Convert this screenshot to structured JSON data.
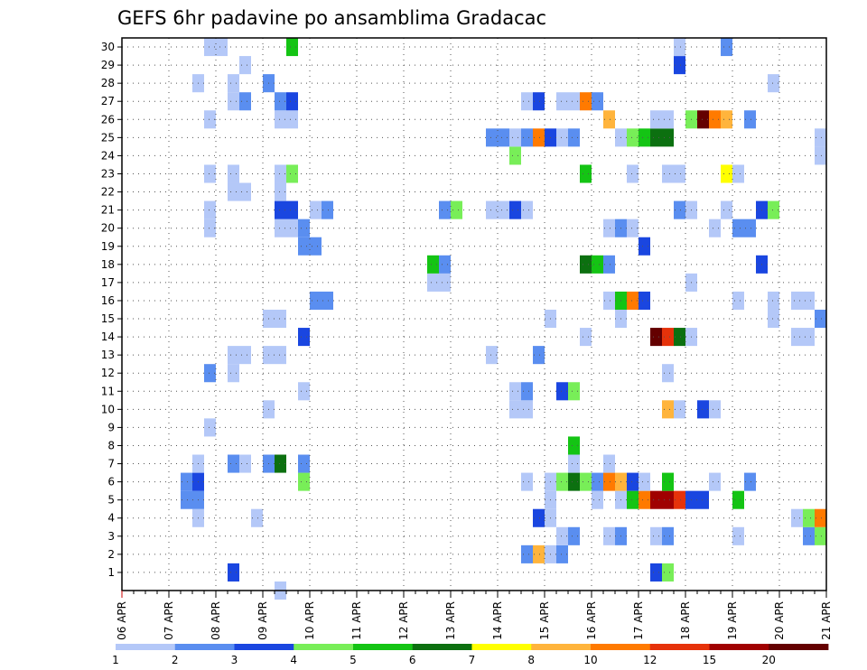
{
  "chart_data": {
    "type": "heatmap",
    "title": "GEFS 6hr padavine po ansamblima Gradacac",
    "xlabel": "",
    "ylabel": "",
    "x_labels": [
      "06 APR",
      "07 APR",
      "08 APR",
      "09 APR",
      "10 APR",
      "11 APR",
      "12 APR",
      "13 APR",
      "14 APR",
      "15 APR",
      "16 APR",
      "17 APR",
      "18 APR",
      "19 APR",
      "20 APR",
      "21 APR"
    ],
    "x_range": [
      0,
      60
    ],
    "x_step_hours": 6,
    "y_range": [
      0,
      30
    ],
    "y_ticks": [
      1,
      2,
      3,
      4,
      5,
      6,
      7,
      8,
      9,
      10,
      11,
      12,
      13,
      14,
      15,
      16,
      17,
      18,
      19,
      20,
      21,
      22,
      23,
      24,
      25,
      26,
      27,
      28,
      29,
      30
    ],
    "grid": true,
    "legend_position": "bottom",
    "colorbar": {
      "tick_labels": [
        "1",
        "2",
        "3",
        "4",
        "5",
        "6",
        "7",
        "8",
        "10",
        "12",
        "15",
        "20"
      ],
      "colors": [
        "#b4c8f8",
        "#5a8ef0",
        "#1a46e0",
        "#78ee58",
        "#14c414",
        "#0c7010",
        "#ffff00",
        "#ffb43c",
        "#ff7a00",
        "#e6320a",
        "#a00000",
        "#640000"
      ]
    },
    "cells": [
      [
        9,
        1,
        3
      ],
      [
        45,
        1,
        3
      ],
      [
        46,
        1,
        4
      ],
      [
        34,
        2,
        2
      ],
      [
        35,
        2,
        8
      ],
      [
        36,
        2,
        1
      ],
      [
        37,
        2,
        2
      ],
      [
        37,
        3,
        1
      ],
      [
        38,
        3,
        2
      ],
      [
        41,
        3,
        1
      ],
      [
        42,
        3,
        2
      ],
      [
        45,
        3,
        1
      ],
      [
        46,
        3,
        2
      ],
      [
        52,
        3,
        1
      ],
      [
        58,
        3,
        2
      ],
      [
        59,
        3,
        4
      ],
      [
        6,
        4,
        1
      ],
      [
        11,
        4,
        1
      ],
      [
        35,
        4,
        3
      ],
      [
        36,
        4,
        1
      ],
      [
        57,
        4,
        1
      ],
      [
        58,
        4,
        4
      ],
      [
        59,
        4,
        9
      ],
      [
        5,
        5,
        2
      ],
      [
        6,
        5,
        2
      ],
      [
        36,
        5,
        1
      ],
      [
        40,
        5,
        1
      ],
      [
        42,
        5,
        1
      ],
      [
        43,
        5,
        5
      ],
      [
        44,
        5,
        9
      ],
      [
        45,
        5,
        11
      ],
      [
        46,
        5,
        11
      ],
      [
        47,
        5,
        10
      ],
      [
        48,
        5,
        3
      ],
      [
        49,
        5,
        3
      ],
      [
        52,
        5,
        5
      ],
      [
        5,
        6,
        2
      ],
      [
        6,
        6,
        3
      ],
      [
        15,
        6,
        4
      ],
      [
        34,
        6,
        1
      ],
      [
        36,
        6,
        1
      ],
      [
        37,
        6,
        4
      ],
      [
        38,
        6,
        6
      ],
      [
        39,
        6,
        4
      ],
      [
        40,
        6,
        2
      ],
      [
        41,
        6,
        9
      ],
      [
        42,
        6,
        8
      ],
      [
        43,
        6,
        3
      ],
      [
        44,
        6,
        1
      ],
      [
        46,
        6,
        5
      ],
      [
        50,
        6,
        1
      ],
      [
        53,
        6,
        2
      ],
      [
        6,
        7,
        1
      ],
      [
        9,
        7,
        2
      ],
      [
        10,
        7,
        1
      ],
      [
        12,
        7,
        2
      ],
      [
        13,
        7,
        6
      ],
      [
        15,
        7,
        2
      ],
      [
        38,
        7,
        1
      ],
      [
        41,
        7,
        1
      ],
      [
        38,
        8,
        5
      ],
      [
        7,
        9,
        1
      ],
      [
        12,
        10,
        1
      ],
      [
        33,
        10,
        1
      ],
      [
        34,
        10,
        1
      ],
      [
        46,
        10,
        8
      ],
      [
        47,
        10,
        1
      ],
      [
        49,
        10,
        3
      ],
      [
        50,
        10,
        1
      ],
      [
        15,
        11,
        1
      ],
      [
        33,
        11,
        1
      ],
      [
        34,
        11,
        2
      ],
      [
        37,
        11,
        3
      ],
      [
        38,
        11,
        4
      ],
      [
        7,
        12,
        2
      ],
      [
        9,
        12,
        1
      ],
      [
        46,
        12,
        1
      ],
      [
        9,
        13,
        1
      ],
      [
        10,
        13,
        1
      ],
      [
        12,
        13,
        1
      ],
      [
        13,
        13,
        1
      ],
      [
        31,
        13,
        1
      ],
      [
        35,
        13,
        2
      ],
      [
        15,
        14,
        3
      ],
      [
        39,
        14,
        1
      ],
      [
        45,
        14,
        12
      ],
      [
        46,
        14,
        10
      ],
      [
        47,
        14,
        6
      ],
      [
        48,
        14,
        1
      ],
      [
        57,
        14,
        1
      ],
      [
        58,
        14,
        1
      ],
      [
        12,
        15,
        1
      ],
      [
        13,
        15,
        1
      ],
      [
        36,
        15,
        1
      ],
      [
        42,
        15,
        1
      ],
      [
        55,
        15,
        1
      ],
      [
        59,
        15,
        2
      ],
      [
        16,
        16,
        2
      ],
      [
        17,
        16,
        2
      ],
      [
        41,
        16,
        1
      ],
      [
        42,
        16,
        5
      ],
      [
        43,
        16,
        9
      ],
      [
        44,
        16,
        3
      ],
      [
        52,
        16,
        1
      ],
      [
        55,
        16,
        1
      ],
      [
        57,
        16,
        1
      ],
      [
        58,
        16,
        1
      ],
      [
        26,
        17,
        1
      ],
      [
        27,
        17,
        1
      ],
      [
        48,
        17,
        1
      ],
      [
        26,
        18,
        5
      ],
      [
        27,
        18,
        2
      ],
      [
        39,
        18,
        6
      ],
      [
        40,
        18,
        5
      ],
      [
        41,
        18,
        2
      ],
      [
        54,
        18,
        3
      ],
      [
        16,
        19,
        2
      ],
      [
        15,
        19,
        2
      ],
      [
        44,
        19,
        3
      ],
      [
        7,
        20,
        1
      ],
      [
        13,
        20,
        1
      ],
      [
        14,
        20,
        1
      ],
      [
        15,
        20,
        2
      ],
      [
        41,
        20,
        1
      ],
      [
        42,
        20,
        2
      ],
      [
        43,
        20,
        1
      ],
      [
        50,
        20,
        1
      ],
      [
        52,
        20,
        2
      ],
      [
        53,
        20,
        2
      ],
      [
        7,
        21,
        1
      ],
      [
        13,
        21,
        3
      ],
      [
        14,
        21,
        3
      ],
      [
        16,
        21,
        1
      ],
      [
        17,
        21,
        2
      ],
      [
        27,
        21,
        2
      ],
      [
        28,
        21,
        4
      ],
      [
        31,
        21,
        1
      ],
      [
        32,
        21,
        1
      ],
      [
        33,
        21,
        3
      ],
      [
        34,
        21,
        1
      ],
      [
        47,
        21,
        2
      ],
      [
        48,
        21,
        1
      ],
      [
        51,
        21,
        1
      ],
      [
        54,
        21,
        3
      ],
      [
        55,
        21,
        4
      ],
      [
        9,
        22,
        1
      ],
      [
        10,
        22,
        1
      ],
      [
        13,
        22,
        1
      ],
      [
        7,
        23,
        1
      ],
      [
        9,
        23,
        1
      ],
      [
        13,
        23,
        1
      ],
      [
        14,
        23,
        4
      ],
      [
        39,
        23,
        5
      ],
      [
        43,
        23,
        1
      ],
      [
        46,
        23,
        1
      ],
      [
        47,
        23,
        1
      ],
      [
        51,
        23,
        7
      ],
      [
        52,
        23,
        1
      ],
      [
        33,
        24,
        4
      ],
      [
        59,
        24,
        1
      ],
      [
        31,
        25,
        2
      ],
      [
        32,
        25,
        2
      ],
      [
        33,
        25,
        1
      ],
      [
        34,
        25,
        2
      ],
      [
        35,
        25,
        9
      ],
      [
        36,
        25,
        3
      ],
      [
        37,
        25,
        1
      ],
      [
        38,
        25,
        2
      ],
      [
        42,
        25,
        1
      ],
      [
        43,
        25,
        4
      ],
      [
        44,
        25,
        5
      ],
      [
        45,
        25,
        6
      ],
      [
        46,
        25,
        6
      ],
      [
        59,
        25,
        1
      ],
      [
        7,
        26,
        1
      ],
      [
        13,
        26,
        1
      ],
      [
        14,
        26,
        1
      ],
      [
        41,
        26,
        8
      ],
      [
        45,
        26,
        1
      ],
      [
        46,
        26,
        1
      ],
      [
        48,
        26,
        4
      ],
      [
        49,
        26,
        12
      ],
      [
        50,
        26,
        9
      ],
      [
        51,
        26,
        8
      ],
      [
        53,
        26,
        2
      ],
      [
        9,
        27,
        1
      ],
      [
        10,
        27,
        2
      ],
      [
        13,
        27,
        2
      ],
      [
        14,
        27,
        3
      ],
      [
        34,
        27,
        1
      ],
      [
        35,
        27,
        3
      ],
      [
        37,
        27,
        1
      ],
      [
        38,
        27,
        1
      ],
      [
        39,
        27,
        9
      ],
      [
        40,
        27,
        2
      ],
      [
        6,
        28,
        1
      ],
      [
        9,
        28,
        1
      ],
      [
        12,
        28,
        2
      ],
      [
        55,
        28,
        1
      ],
      [
        10,
        29,
        1
      ],
      [
        47,
        29,
        3
      ],
      [
        7,
        30,
        1
      ],
      [
        8,
        30,
        1
      ],
      [
        14,
        30,
        5
      ],
      [
        47,
        30,
        1
      ],
      [
        51,
        30,
        2
      ],
      [
        13,
        0,
        1
      ]
    ]
  }
}
